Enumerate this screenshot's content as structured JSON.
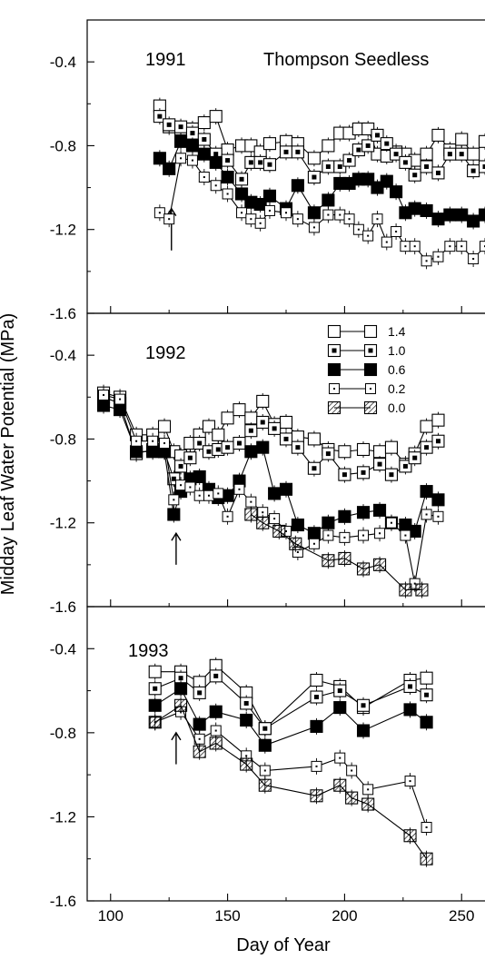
{
  "chart_data": [
    {
      "type": "line",
      "panel_label": "1991",
      "title": "Thompson Seedless",
      "xlim": [
        90,
        260
      ],
      "ylim": [
        -1.6,
        -0.2
      ],
      "yticks": [
        "-0.4",
        "-0.8",
        "-1.2",
        "-1.6"
      ],
      "arrow_day": 126,
      "series": [
        {
          "name": "1.4",
          "marker": "open",
          "x": [
            121,
            125,
            130,
            135,
            140,
            145,
            150,
            156,
            160,
            164,
            168,
            175,
            180,
            187,
            193,
            198,
            202,
            206,
            210,
            214,
            218,
            222,
            226,
            230,
            235,
            240,
            245,
            250,
            255,
            260
          ],
          "y": [
            -0.61,
            -0.71,
            -0.72,
            -0.72,
            -0.69,
            -0.66,
            -0.82,
            -0.8,
            -0.8,
            -0.83,
            -0.79,
            -0.78,
            -0.79,
            -0.86,
            -0.8,
            -0.74,
            -0.74,
            -0.72,
            -0.72,
            -0.84,
            -0.85,
            -0.83,
            -0.84,
            -0.87,
            -0.84,
            -0.75,
            -0.82,
            -0.77,
            -0.84,
            -0.78
          ]
        },
        {
          "name": "1.0",
          "marker": "dot",
          "x": [
            121,
            125,
            130,
            135,
            140,
            145,
            150,
            156,
            160,
            164,
            168,
            175,
            180,
            187,
            193,
            198,
            202,
            206,
            210,
            214,
            218,
            222,
            226,
            230,
            235,
            240,
            245,
            250,
            255,
            260
          ],
          "y": [
            -0.66,
            -0.7,
            -0.71,
            -0.74,
            -0.77,
            -0.84,
            -0.87,
            -0.96,
            -0.88,
            -0.88,
            -0.89,
            -0.83,
            -0.83,
            -0.95,
            -0.9,
            -0.9,
            -0.87,
            -0.82,
            -0.8,
            -0.75,
            -0.79,
            -0.84,
            -0.88,
            -0.94,
            -0.9,
            -0.93,
            -0.84,
            -0.84,
            -0.92,
            -0.9
          ]
        },
        {
          "name": "0.6",
          "marker": "filled",
          "x": [
            121,
            125,
            130,
            135,
            140,
            145,
            150,
            156,
            160,
            164,
            168,
            175,
            180,
            187,
            193,
            198,
            202,
            206,
            210,
            214,
            218,
            222,
            226,
            230,
            235,
            240,
            245,
            250,
            255,
            260
          ],
          "y": [
            -0.86,
            -0.91,
            -0.78,
            -0.8,
            -0.84,
            -0.88,
            -0.95,
            -1.03,
            -1.07,
            -1.08,
            -1.04,
            -1.1,
            -0.99,
            -1.12,
            -1.06,
            -0.98,
            -0.98,
            -0.96,
            -0.96,
            -1.0,
            -0.97,
            -1.02,
            -1.12,
            -1.1,
            -1.11,
            -1.15,
            -1.13,
            -1.13,
            -1.16,
            -1.13
          ]
        },
        {
          "name": "0.2",
          "marker": "small",
          "x": [
            121,
            125,
            130,
            135,
            140,
            145,
            150,
            156,
            160,
            164,
            168,
            175,
            180,
            187,
            193,
            198,
            202,
            206,
            210,
            214,
            218,
            222,
            226,
            230,
            235,
            240,
            245,
            250,
            255,
            260
          ],
          "y": [
            -1.12,
            -1.15,
            -0.86,
            -0.87,
            -0.95,
            -0.99,
            -1.03,
            -1.12,
            -1.15,
            -1.17,
            -1.11,
            -1.12,
            -1.15,
            -1.19,
            -1.13,
            -1.13,
            -1.15,
            -1.2,
            -1.23,
            -1.15,
            -1.26,
            -1.21,
            -1.28,
            -1.28,
            -1.35,
            -1.33,
            -1.28,
            -1.28,
            -1.34,
            -1.28
          ]
        }
      ]
    },
    {
      "type": "line",
      "panel_label": "1992",
      "xlim": [
        90,
        260
      ],
      "ylim": [
        -1.6,
        -0.2
      ],
      "yticks": [
        "-0.4",
        "-0.8",
        "-1.2",
        "-1.6"
      ],
      "arrow_day": 128,
      "legend": [
        "1.4",
        "1.0",
        "0.6",
        "0.2",
        "0.0"
      ],
      "series": [
        {
          "name": "1.4",
          "marker": "open",
          "x": [
            97,
            104,
            111,
            118,
            123,
            127,
            130,
            134,
            138,
            142,
            146,
            150,
            155,
            160,
            165,
            170,
            175,
            180,
            187,
            193,
            200,
            208,
            215,
            220,
            226,
            230,
            235,
            240
          ],
          "y": [
            -0.58,
            -0.6,
            -0.78,
            -0.78,
            -0.74,
            -0.86,
            -0.88,
            -0.82,
            -0.78,
            -0.74,
            -0.78,
            -0.7,
            -0.66,
            -0.7,
            -0.62,
            -0.73,
            -0.72,
            -0.79,
            -0.8,
            -0.85,
            -0.86,
            -0.85,
            -0.86,
            -0.84,
            -0.92,
            -0.87,
            -0.74,
            -0.71
          ]
        },
        {
          "name": "1.0",
          "marker": "dot",
          "x": [
            97,
            104,
            111,
            118,
            123,
            127,
            130,
            134,
            138,
            142,
            146,
            150,
            155,
            160,
            165,
            170,
            175,
            180,
            187,
            193,
            200,
            208,
            215,
            220,
            226,
            230,
            235,
            240
          ],
          "y": [
            -0.6,
            -0.63,
            -0.87,
            -0.85,
            -0.86,
            -0.99,
            -0.93,
            -0.89,
            -0.82,
            -0.86,
            -0.85,
            -0.84,
            -0.82,
            -0.76,
            -0.72,
            -0.75,
            -0.8,
            -0.84,
            -0.94,
            -0.87,
            -0.97,
            -0.96,
            -0.92,
            -0.97,
            -0.93,
            -0.89,
            -0.84,
            -0.81
          ]
        },
        {
          "name": "0.6",
          "marker": "filled",
          "x": [
            97,
            104,
            111,
            118,
            123,
            127,
            130,
            134,
            138,
            142,
            146,
            150,
            155,
            160,
            165,
            170,
            175,
            180,
            187,
            193,
            200,
            208,
            215,
            220,
            226,
            230,
            235,
            240
          ],
          "y": [
            -0.64,
            -0.66,
            -0.86,
            -0.86,
            -0.86,
            -1.16,
            -1.05,
            -0.99,
            -0.98,
            -1.04,
            -1.08,
            -1.07,
            -1.0,
            -0.86,
            -0.84,
            -1.06,
            -1.04,
            -1.21,
            -1.25,
            -1.2,
            -1.17,
            -1.15,
            -1.14,
            -1.2,
            -1.21,
            -1.24,
            -1.05,
            -1.09
          ]
        },
        {
          "name": "0.2",
          "marker": "small",
          "x": [
            97,
            104,
            111,
            118,
            123,
            127,
            130,
            134,
            138,
            142,
            146,
            150,
            155,
            160,
            165,
            170,
            175,
            180,
            187,
            193,
            200,
            208,
            215,
            220,
            226,
            230,
            235,
            240
          ],
          "y": [
            -0.59,
            -0.61,
            -0.81,
            -0.81,
            -0.82,
            -1.09,
            -1.02,
            -1.03,
            -1.07,
            -1.07,
            -1.06,
            -1.17,
            -1.04,
            -1.1,
            -1.15,
            -1.18,
            -1.24,
            -1.34,
            -1.3,
            -1.26,
            -1.27,
            -1.26,
            -1.25,
            -1.2,
            -1.26,
            -1.49,
            -1.16,
            -1.17
          ]
        },
        {
          "name": "0.0",
          "marker": "hatched",
          "x": [
            160,
            165,
            172,
            179,
            193,
            200,
            208,
            215,
            226,
            233
          ],
          "y": [
            -1.16,
            -1.2,
            -1.24,
            -1.3,
            -1.38,
            -1.37,
            -1.42,
            -1.4,
            -1.52,
            -1.52
          ]
        }
      ]
    },
    {
      "type": "line",
      "panel_label": "1993",
      "xlim": [
        90,
        260
      ],
      "ylim": [
        -1.6,
        -0.2
      ],
      "yticks": [
        "-0.4",
        "-0.8",
        "-1.2",
        "-1.6"
      ],
      "xticks": [
        "100",
        "150",
        "200",
        "250"
      ],
      "xlabel": "Day of Year",
      "ylabel": "Midday Leaf Water Potential (MPa)",
      "arrow_day": 128,
      "series": [
        {
          "name": "1.4",
          "marker": "open",
          "x": [
            119,
            130,
            138,
            145,
            158,
            166,
            188,
            198,
            208,
            228,
            235
          ],
          "y": [
            -0.51,
            -0.51,
            -0.56,
            -0.48,
            -0.61,
            -0.78,
            -0.55,
            -0.58,
            -0.68,
            -0.55,
            -0.54
          ]
        },
        {
          "name": "1.0",
          "marker": "dot",
          "x": [
            119,
            130,
            138,
            145,
            158,
            166,
            188,
            198,
            208,
            228,
            235
          ],
          "y": [
            -0.59,
            -0.54,
            -0.61,
            -0.53,
            -0.66,
            -0.78,
            -0.63,
            -0.6,
            -0.67,
            -0.58,
            -0.62
          ]
        },
        {
          "name": "0.6",
          "marker": "filled",
          "x": [
            119,
            130,
            138,
            145,
            158,
            166,
            188,
            198,
            208,
            228,
            235
          ],
          "y": [
            -0.67,
            -0.59,
            -0.76,
            -0.7,
            -0.74,
            -0.86,
            -0.77,
            -0.68,
            -0.79,
            -0.69,
            -0.75
          ]
        },
        {
          "name": "0.2",
          "marker": "small",
          "x": [
            119,
            130,
            138,
            145,
            158,
            166,
            188,
            198,
            203,
            210,
            228,
            235
          ],
          "y": [
            -0.75,
            -0.7,
            -0.83,
            -0.79,
            -0.91,
            -0.98,
            -0.96,
            -0.92,
            -0.98,
            -1.07,
            -1.03,
            -1.25
          ]
        },
        {
          "name": "0.0",
          "marker": "hatched",
          "x": [
            119,
            130,
            138,
            145,
            158,
            166,
            188,
            198,
            203,
            210,
            228,
            235
          ],
          "y": [
            -0.75,
            -0.67,
            -0.89,
            -0.85,
            -0.95,
            -1.05,
            -1.1,
            -1.05,
            -1.11,
            -1.14,
            -1.29,
            -1.4
          ]
        }
      ]
    }
  ]
}
